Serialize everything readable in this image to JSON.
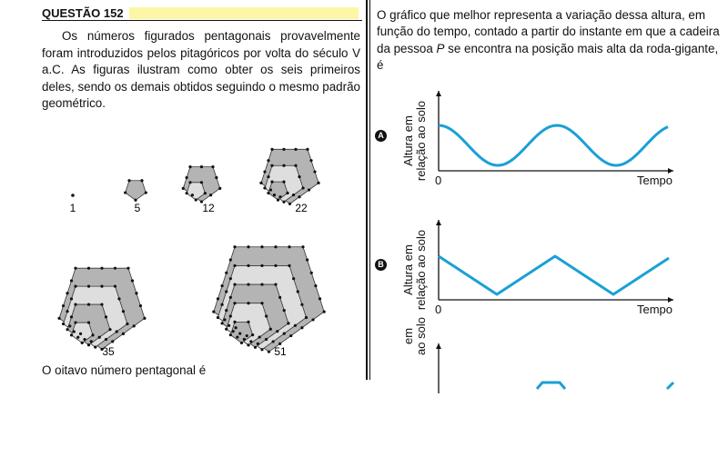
{
  "question": {
    "title": "QUESTÃO 152",
    "intro": "Os números figurados pentagonais provavelmente foram introduzidos pelos pitagóricos por volta do século V a.C. As figuras ilustram como obter os seis primeiros deles, sendo os demais obtidos seguindo o mesmo padrão geométrico.",
    "figures": [
      {
        "label": "1"
      },
      {
        "label": "5"
      },
      {
        "label": "12"
      },
      {
        "label": "22"
      },
      {
        "label": "35"
      },
      {
        "label": "51"
      }
    ],
    "prompt_end": "O oitavo número pentagonal é"
  },
  "right": {
    "stem_part1": "O gráfico que melhor representa a variação dessa altura, em função do tempo, contado a partir do instante em que a cadeira da pessoa ",
    "stem_var": "P",
    "stem_part2": " se encontra na posição mais alta da roda-gigante, é",
    "options": [
      {
        "letter": "A",
        "ylabel_1": "Altura em",
        "ylabel_2": "relação ao solo",
        "origin": "0",
        "xlabel": "Tempo",
        "curve": "sine"
      },
      {
        "letter": "B",
        "ylabel_1": "Altura em",
        "ylabel_2": "relação ao solo",
        "origin": "0",
        "xlabel": "Tempo",
        "curve": "triangle"
      },
      {
        "ylabel_1": "em",
        "ylabel_2": "ao solo",
        "curve": "partial"
      }
    ]
  },
  "colors": {
    "curve": "#1aa0d6",
    "header_bar": "#fdf6a6",
    "shade_dark": "#b4b4b4",
    "shade_light": "#dedede"
  }
}
